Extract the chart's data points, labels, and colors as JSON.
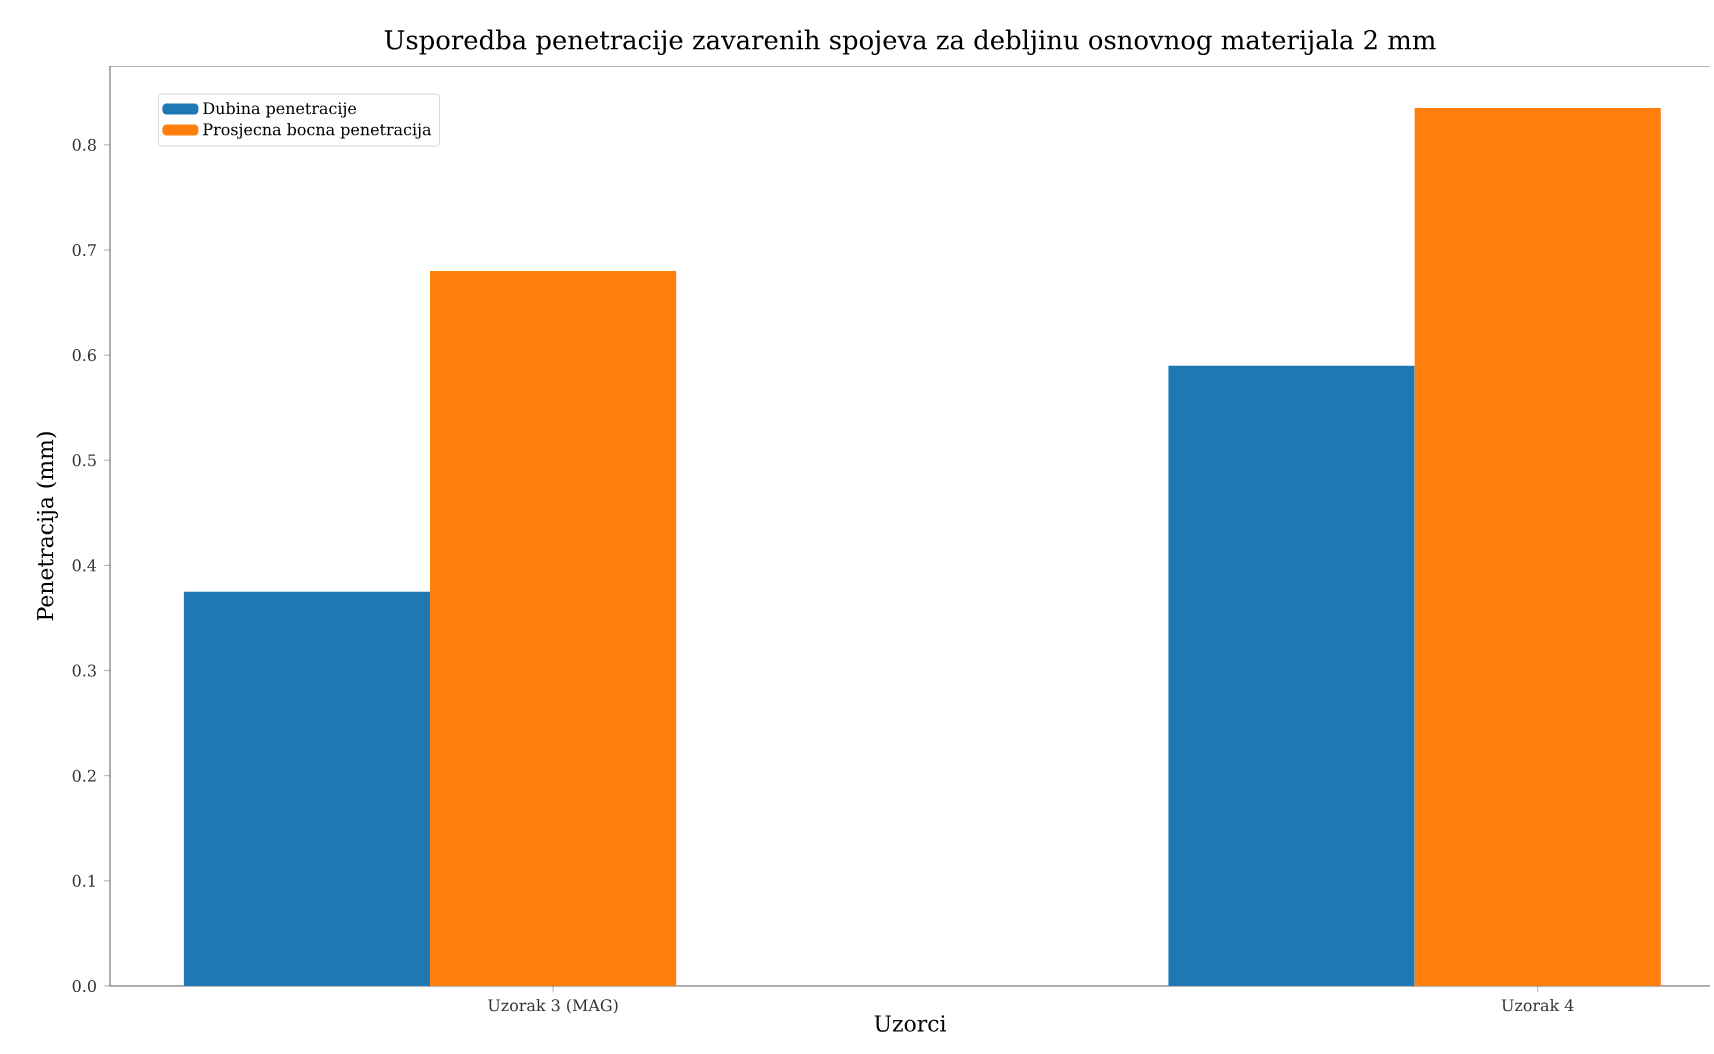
{
  "chart_data": {
    "type": "bar",
    "title": "Usporedba penetracije zavarenih spojeva za debljinu osnovnog materijala 2 mm",
    "xlabel": "Uzorci",
    "ylabel": "Penetracija (mm)",
    "categories": [
      "Uzorak 3 (MAG)",
      "Uzorak 4"
    ],
    "series": [
      {
        "name": "Dubina penetracije",
        "color": "#1f77b4",
        "values": [
          0.375,
          0.59
        ]
      },
      {
        "name": "Prosjecna bocna penetracija",
        "color": "#ff7f0e",
        "values": [
          0.68,
          0.835
        ]
      }
    ],
    "ylim": [
      0,
      0.875
    ],
    "yticks": [
      {
        "value": 0,
        "label": "0.0"
      },
      0.1,
      0.2,
      0.3,
      0.4,
      0.5,
      0.6,
      0.7,
      0.8
    ],
    "legend": "top left"
  }
}
